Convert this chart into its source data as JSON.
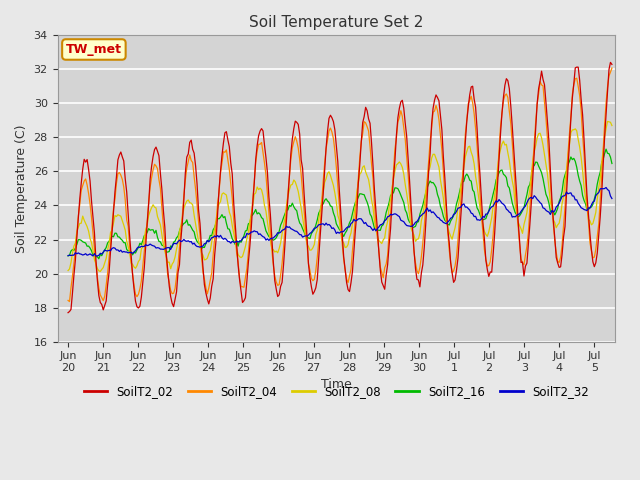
{
  "title": "Soil Temperature Set 2",
  "xlabel": "Time",
  "ylabel": "Soil Temperature (C)",
  "ylim": [
    16,
    34
  ],
  "background_color": "#e8e8e8",
  "plot_bg_color": "#d4d4d4",
  "series_colors": {
    "SoilT2_02": "#cc0000",
    "SoilT2_04": "#ff8800",
    "SoilT2_08": "#ddcc00",
    "SoilT2_16": "#00bb00",
    "SoilT2_32": "#0000cc"
  },
  "annotation_text": "TW_met",
  "annotation_color": "#cc0000",
  "annotation_bg": "#ffffcc",
  "annotation_border": "#cc8800",
  "yticks": [
    16,
    18,
    20,
    22,
    24,
    26,
    28,
    30,
    32,
    34
  ]
}
